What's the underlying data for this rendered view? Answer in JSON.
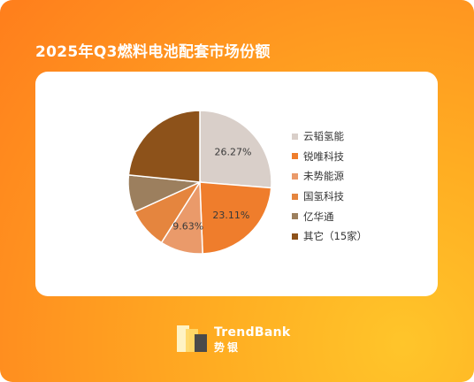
{
  "chart_data": {
    "type": "pie",
    "title": "2025年Q3燃料电池配套市场份额",
    "slices": [
      {
        "name": "云韬氢能",
        "value": 26.27,
        "label": "26.27%",
        "color": "#d9cfc9"
      },
      {
        "name": "锐唯科技",
        "value": 23.11,
        "label": "23.11%",
        "color": "#ef7d2c"
      },
      {
        "name": "未势能源",
        "value": 9.63,
        "label": "9.63%",
        "color": "#ea9a6a"
      },
      {
        "name": "国氢科技",
        "value": 9.2,
        "label": "",
        "color": "#e5853e"
      },
      {
        "name": "亿华通",
        "value": 8.4,
        "label": "",
        "color": "#9c7f5e"
      },
      {
        "name": "其它（15家）",
        "value": 23.39,
        "label": "",
        "color": "#8d521a"
      }
    ],
    "legend_position": "right"
  },
  "brand": {
    "name": "TrendBank",
    "name_cn": "势银"
  }
}
